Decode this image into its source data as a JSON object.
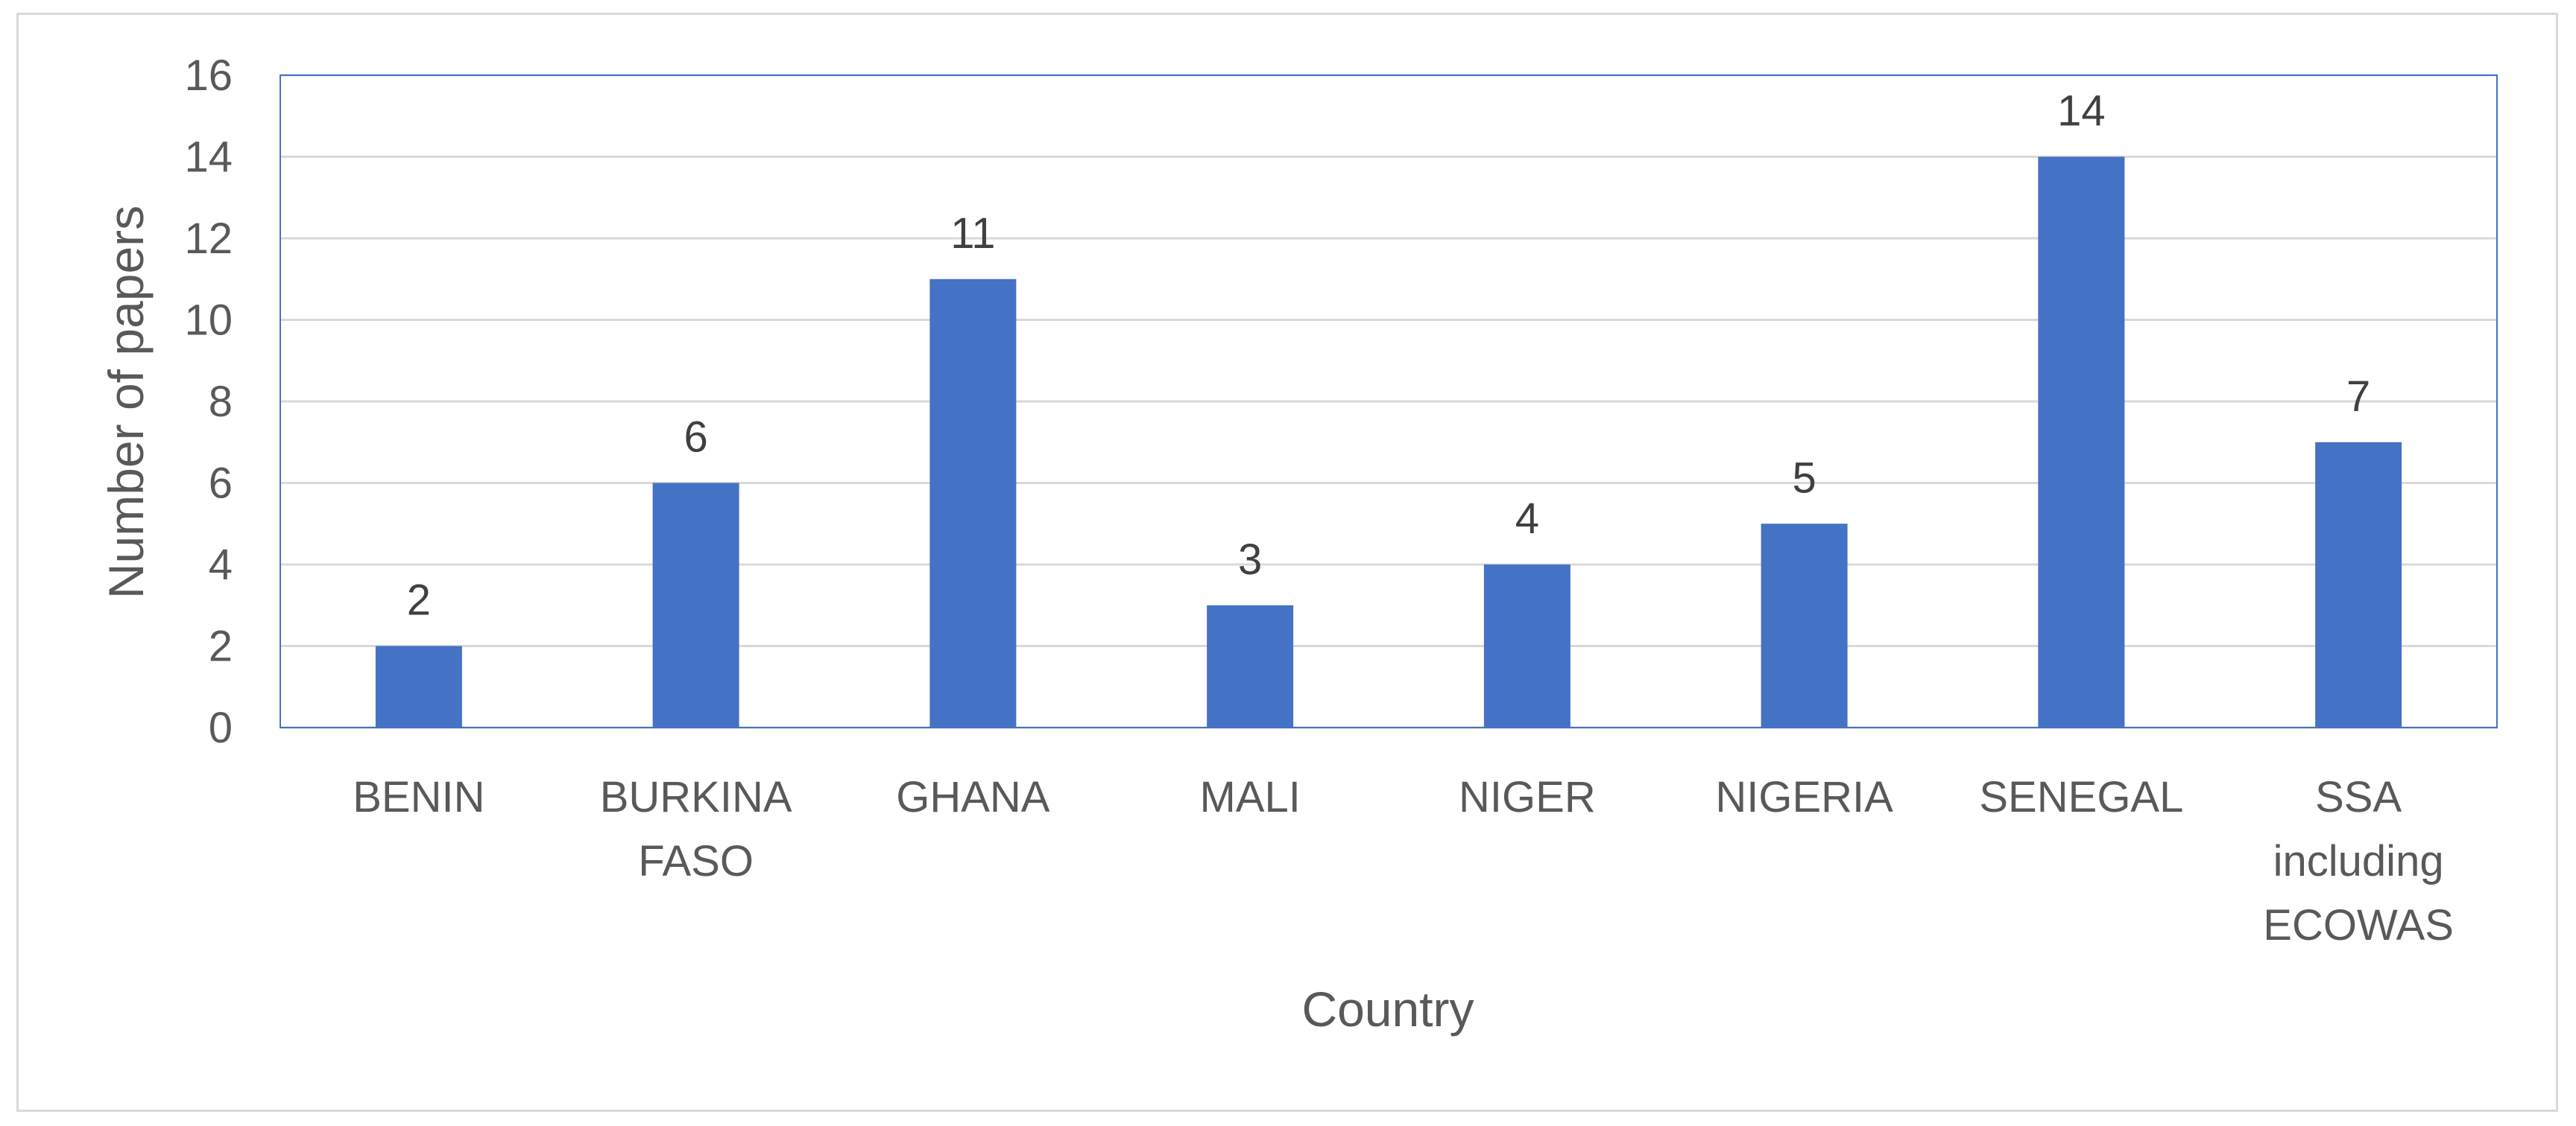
{
  "chart_data": {
    "type": "bar",
    "title": "",
    "xlabel": "Country",
    "ylabel": "Number of papers",
    "categories": [
      [
        "BENIN"
      ],
      [
        "BURKINA",
        "FASO"
      ],
      [
        "GHANA"
      ],
      [
        "MALI"
      ],
      [
        "NIGER"
      ],
      [
        "NIGERIA"
      ],
      [
        "SENEGAL"
      ],
      [
        "SSA",
        "including",
        "ECOWAS"
      ]
    ],
    "values": [
      2,
      6,
      11,
      3,
      4,
      5,
      14,
      7
    ],
    "ylim": [
      0,
      16
    ],
    "yticks": [
      0,
      2,
      4,
      6,
      8,
      10,
      12,
      14,
      16
    ],
    "grid": true,
    "legend": "none",
    "data_labels": true,
    "bar_color": "#4472c4",
    "grid_color": "#d9d9d9",
    "plot_border_color": "#4472c4"
  }
}
